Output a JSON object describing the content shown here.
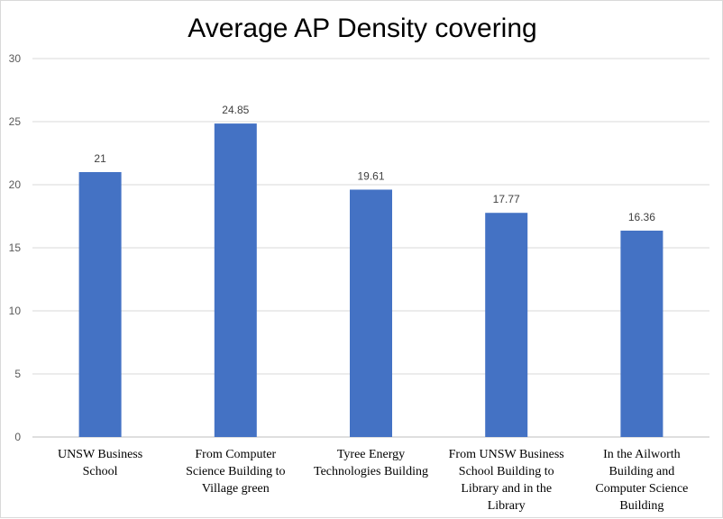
{
  "chart_data": {
    "type": "bar",
    "title": "Average AP Density covering",
    "categories": [
      [
        "UNSW Business",
        "School"
      ],
      [
        "From Computer",
        "Science Building to",
        "Village green"
      ],
      [
        "Tyree Energy",
        "Technologies Building"
      ],
      [
        "From UNSW Business",
        "School Building to",
        "Library and in the",
        "Library"
      ],
      [
        "In the Ailworth",
        "Building and",
        "Computer Science",
        "Building"
      ]
    ],
    "values": [
      21,
      24.85,
      19.61,
      17.77,
      16.36
    ],
    "data_labels": [
      "21",
      "24.85",
      "19.61",
      "17.77",
      "16.36"
    ],
    "ylim": [
      0,
      30
    ],
    "yticks": [
      0,
      5,
      10,
      15,
      20,
      25,
      30
    ],
    "grid": true,
    "legend": "none",
    "bar_color": "#4472c4",
    "xlabel": "",
    "ylabel": ""
  }
}
